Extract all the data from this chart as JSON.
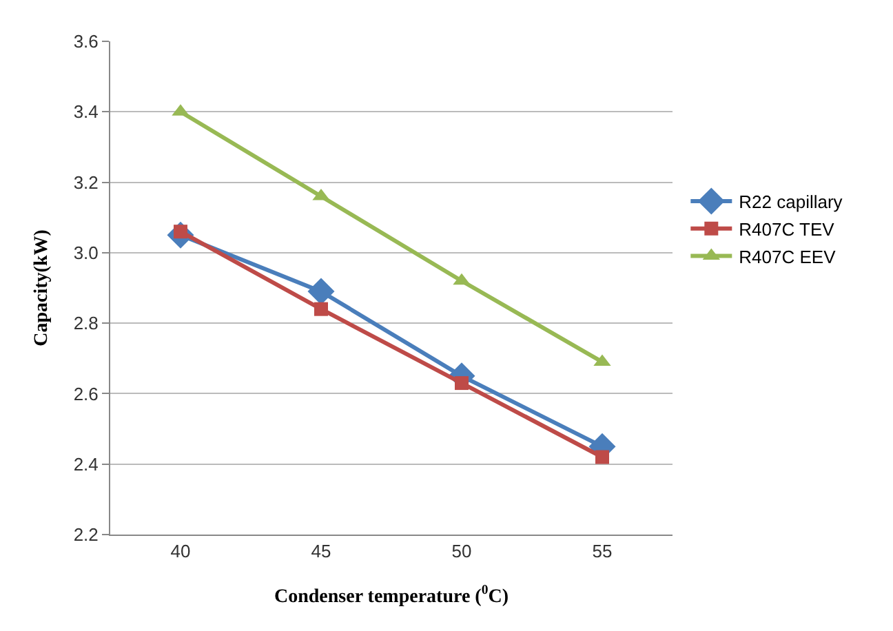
{
  "chart_data": {
    "type": "line",
    "xlabel": "Condenser temperature ($^{0}$C)",
    "ylabel": "Capacity(kW)",
    "categories": [
      "40",
      "45",
      "50",
      "55"
    ],
    "series": [
      {
        "name": "R22 capillary",
        "color": "#4a7ebb",
        "marker": "diamond",
        "values": [
          3.05,
          2.89,
          2.65,
          2.45
        ]
      },
      {
        "name": "R407C TEV",
        "color": "#be4b48",
        "marker": "square",
        "values": [
          3.06,
          2.84,
          2.63,
          2.42
        ]
      },
      {
        "name": "R407C EEV",
        "color": "#98b954",
        "marker": "triangle",
        "values": [
          3.4,
          3.16,
          2.92,
          2.69
        ]
      }
    ],
    "ylim": [
      2.2,
      3.6
    ],
    "yticks": [
      2.2,
      2.4,
      2.6,
      2.8,
      {
        "value": 3,
        "label": "3.0"
      },
      3.2,
      3.4,
      3.6
    ],
    "grid": "y",
    "legend": "right",
    "line_style": "solid"
  }
}
